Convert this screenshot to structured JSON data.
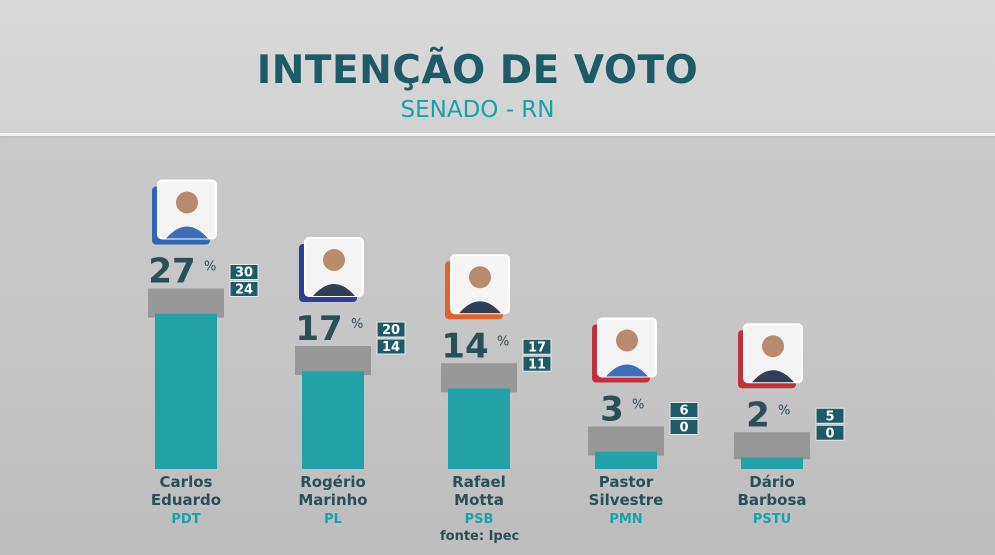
{
  "header": {
    "title": "INTENÇÃO DE VOTO",
    "subtitle": "SENADO - RN"
  },
  "source": "fonte: Ipec",
  "chart_data": {
    "type": "bar",
    "title": "INTENÇÃO DE VOTO",
    "subtitle": "SENADO - RN",
    "unit": "%",
    "categories": [
      "Carlos Eduardo",
      "Rogério Marinho",
      "Rafael Motta",
      "Pastor Silvestre",
      "Dário Barbosa"
    ],
    "candidates": [
      {
        "name_line1": "Carlos",
        "name_line2": "Eduardo",
        "party": "PDT",
        "value": 27,
        "high": 30,
        "low": 24,
        "accent": "#2f67b5"
      },
      {
        "name_line1": "Rogério",
        "name_line2": "Marinho",
        "party": "PL",
        "value": 17,
        "high": 20,
        "low": 14,
        "accent": "#2b3f96"
      },
      {
        "name_line1": "Rafael",
        "name_line2": "Motta",
        "party": "PSB",
        "value": 14,
        "high": 17,
        "low": 11,
        "accent": "#e0612a"
      },
      {
        "name_line1": "Pastor",
        "name_line2": "Silvestre",
        "party": "PMN",
        "value": 3,
        "high": 6,
        "low": 0,
        "accent": "#c4303a"
      },
      {
        "name_line1": "Dário",
        "name_line2": "Barbosa",
        "party": "PSTU",
        "value": 2,
        "high": 5,
        "low": 0,
        "accent": "#c4303a"
      }
    ],
    "series": [
      {
        "values": [
          27,
          17,
          14,
          3,
          2
        ]
      }
    ],
    "error_margin": {
      "high": [
        30,
        20,
        17,
        6,
        5
      ],
      "low": [
        24,
        14,
        11,
        0,
        0
      ]
    },
    "colors": {
      "bar": "#22a2a6",
      "range": "#8f8f8f",
      "range_box": "#1f5b66"
    }
  }
}
